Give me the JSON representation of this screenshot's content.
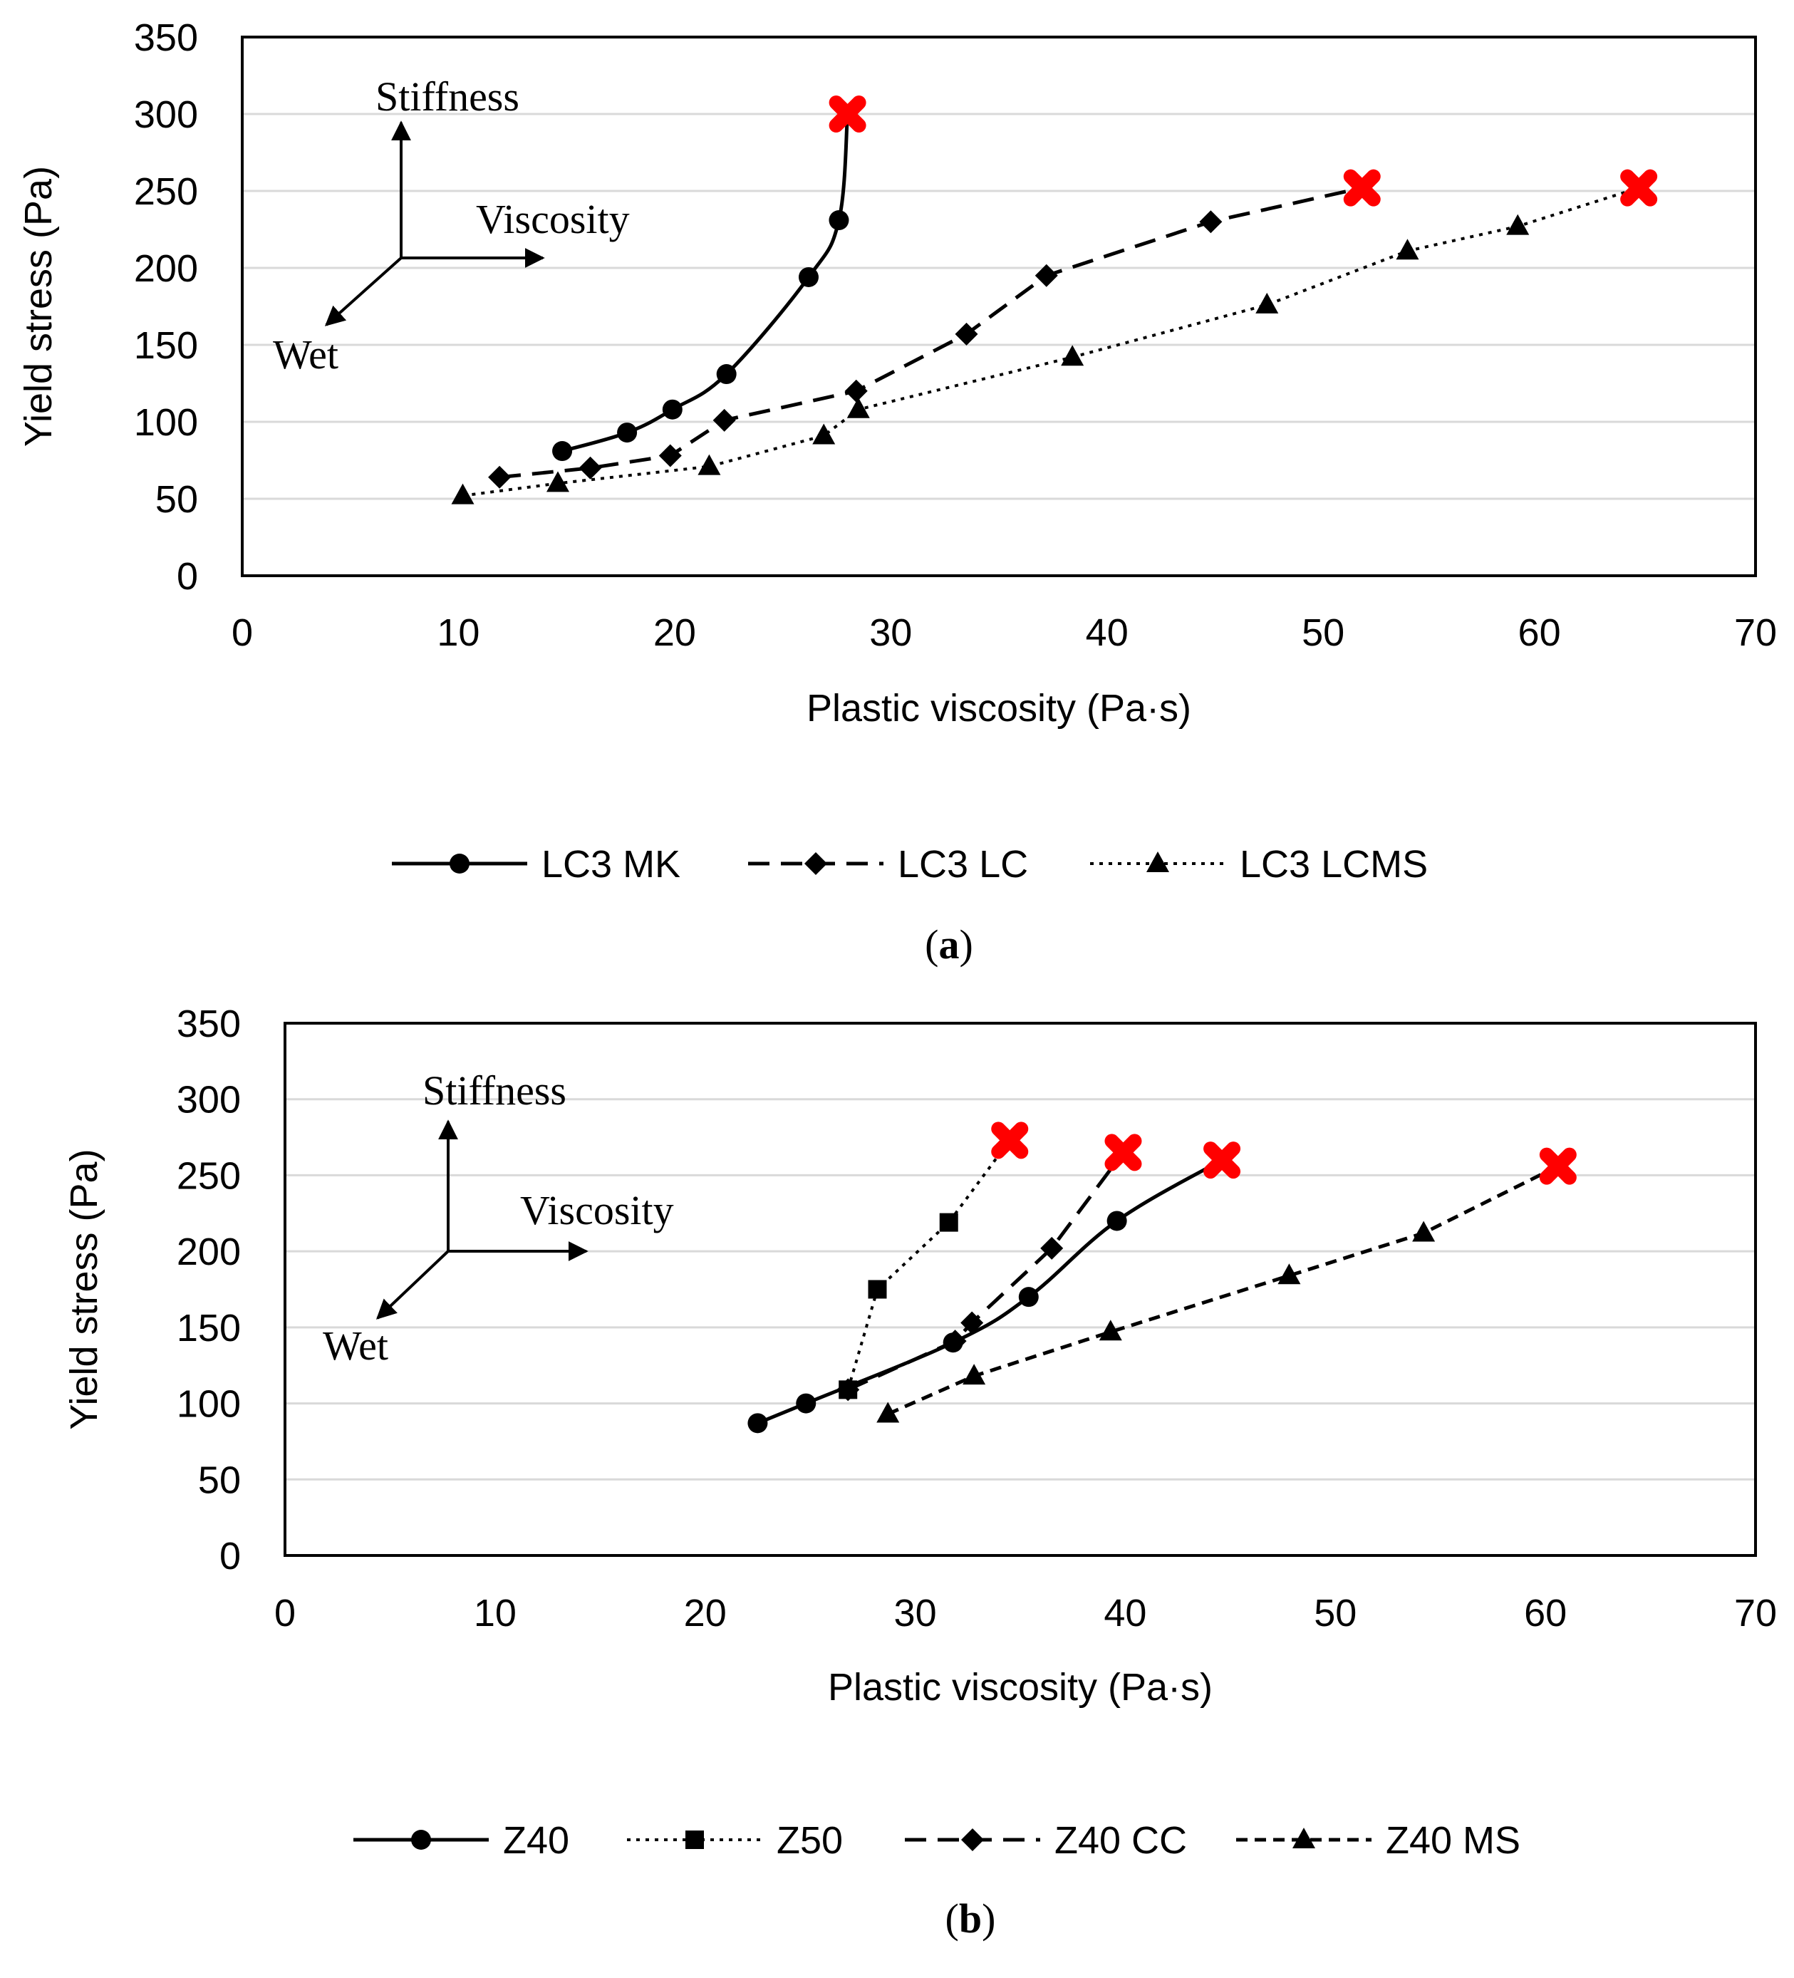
{
  "chart_data": [
    {
      "type": "line",
      "panel_label_open": "(",
      "panel_label": "a",
      "panel_label_close": ")",
      "xlabel": "Plastic viscosity (Pa·s)",
      "ylabel": "Yield stress (Pa)",
      "xlim": [
        0,
        70
      ],
      "ylim": [
        0,
        350
      ],
      "x_ticks": [
        0,
        10,
        20,
        30,
        40,
        50,
        60,
        70
      ],
      "y_ticks": [
        0,
        50,
        100,
        150,
        200,
        250,
        300,
        350
      ],
      "grid": "horizontal",
      "legend": "bottom",
      "annotations": {
        "stiffness": "Stiffness",
        "viscosity": "Viscosity",
        "wet": "Wet"
      },
      "end_marker_color": "#ff0000",
      "series": [
        {
          "name": "LC3 MK",
          "marker": "circle",
          "dash": "solid",
          "curve": true,
          "x": [
            14.8,
            17.8,
            19.9,
            22.4,
            26.2,
            27.6,
            28.0
          ],
          "y": [
            81,
            93,
            108,
            131,
            194,
            231,
            300
          ],
          "end": [
            28.0,
            300
          ]
        },
        {
          "name": "LC3 LC",
          "marker": "diamond",
          "dash": "dashed",
          "curve": false,
          "x": [
            11.9,
            16.1,
            19.8,
            22.3,
            28.4,
            33.5,
            37.2,
            44.8,
            51.8
          ],
          "y": [
            64,
            70,
            78,
            101,
            120,
            157,
            195,
            230,
            252
          ],
          "end": [
            51.8,
            252
          ]
        },
        {
          "name": "LC3 LCMS",
          "marker": "triangle",
          "dash": "dotted",
          "curve": false,
          "x": [
            10.2,
            14.6,
            21.6,
            26.9,
            28.5,
            38.4,
            47.4,
            53.9,
            59.0,
            64.6
          ],
          "y": [
            52,
            60,
            71,
            91,
            108,
            142,
            176,
            211,
            227,
            252
          ],
          "end": [
            64.6,
            252
          ]
        }
      ]
    },
    {
      "type": "line",
      "panel_label_open": "(",
      "panel_label": "b",
      "panel_label_close": ")",
      "xlabel": "Plastic viscosity (Pa·s)",
      "ylabel": "Yield stress (Pa)",
      "xlim": [
        0,
        70
      ],
      "ylim": [
        0,
        350
      ],
      "x_ticks": [
        0,
        10,
        20,
        30,
        40,
        50,
        60,
        70
      ],
      "y_ticks": [
        0,
        50,
        100,
        150,
        200,
        250,
        300,
        350
      ],
      "grid": "horizontal",
      "legend": "bottom",
      "annotations": {
        "stiffness": "Stiffness",
        "viscosity": "Viscosity",
        "wet": "Wet"
      },
      "end_marker_color": "#ff0000",
      "series": [
        {
          "name": "Z40",
          "marker": "circle",
          "dash": "solid",
          "curve": true,
          "x": [
            22.5,
            24.8,
            31.8,
            35.4,
            39.6,
            44.6
          ],
          "y": [
            87,
            100,
            140,
            170,
            220,
            260
          ],
          "end": [
            44.6,
            260
          ]
        },
        {
          "name": "Z50",
          "marker": "square",
          "dash": "dotted",
          "curve": false,
          "x": [
            26.8,
            28.2,
            31.6,
            34.5
          ],
          "y": [
            109,
            175,
            219,
            273
          ],
          "end": [
            34.5,
            273
          ]
        },
        {
          "name": "Z40 CC",
          "marker": "diamond",
          "dash": "dashed",
          "curve": false,
          "x": [
            26.8,
            31.9,
            32.7,
            36.5,
            39.9
          ],
          "y": [
            109,
            141,
            153,
            202,
            265
          ],
          "end": [
            39.9,
            265
          ]
        },
        {
          "name": "Z40 MS",
          "marker": "triangle",
          "dash": "shortdash",
          "curve": false,
          "x": [
            28.7,
            32.8,
            39.3,
            47.8,
            54.2,
            60.6
          ],
          "y": [
            93,
            118,
            147,
            184,
            212,
            256
          ],
          "end": [
            60.6,
            256
          ]
        }
      ]
    }
  ]
}
